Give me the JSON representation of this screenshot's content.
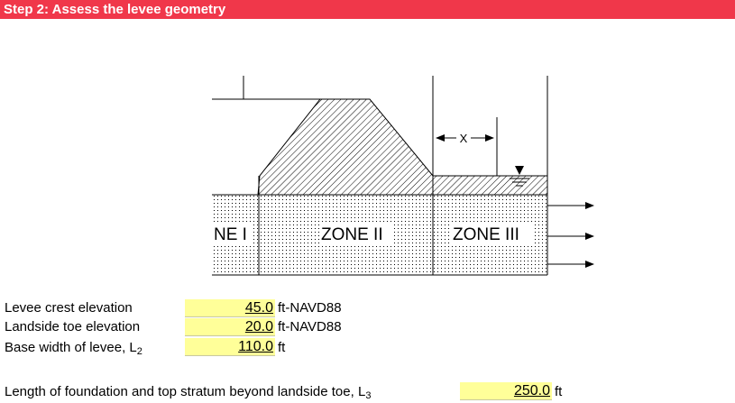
{
  "header": {
    "title": "Step 2: Assess the levee geometry",
    "color": "#f0374a"
  },
  "diagram": {
    "zone1_label": "NE I",
    "zone2_label": "ZONE II",
    "zone3_label": "ZONE III",
    "x_label": "X"
  },
  "inputs": {
    "crest": {
      "label": "Levee crest elevation",
      "value": "45.0",
      "unit": "ft-NAVD88"
    },
    "toe": {
      "label": "Landside toe elevation",
      "value": "20.0",
      "unit": "ft-NAVD88"
    },
    "base": {
      "label": "Base width of levee, L",
      "sub": "2",
      "value": "110.0",
      "unit": "ft"
    },
    "length": {
      "label": "Length of foundation and top stratum beyond landside toe, L",
      "sub": "3",
      "value": "250.0",
      "unit": "ft"
    }
  },
  "input_fill_color": "#ffff99"
}
